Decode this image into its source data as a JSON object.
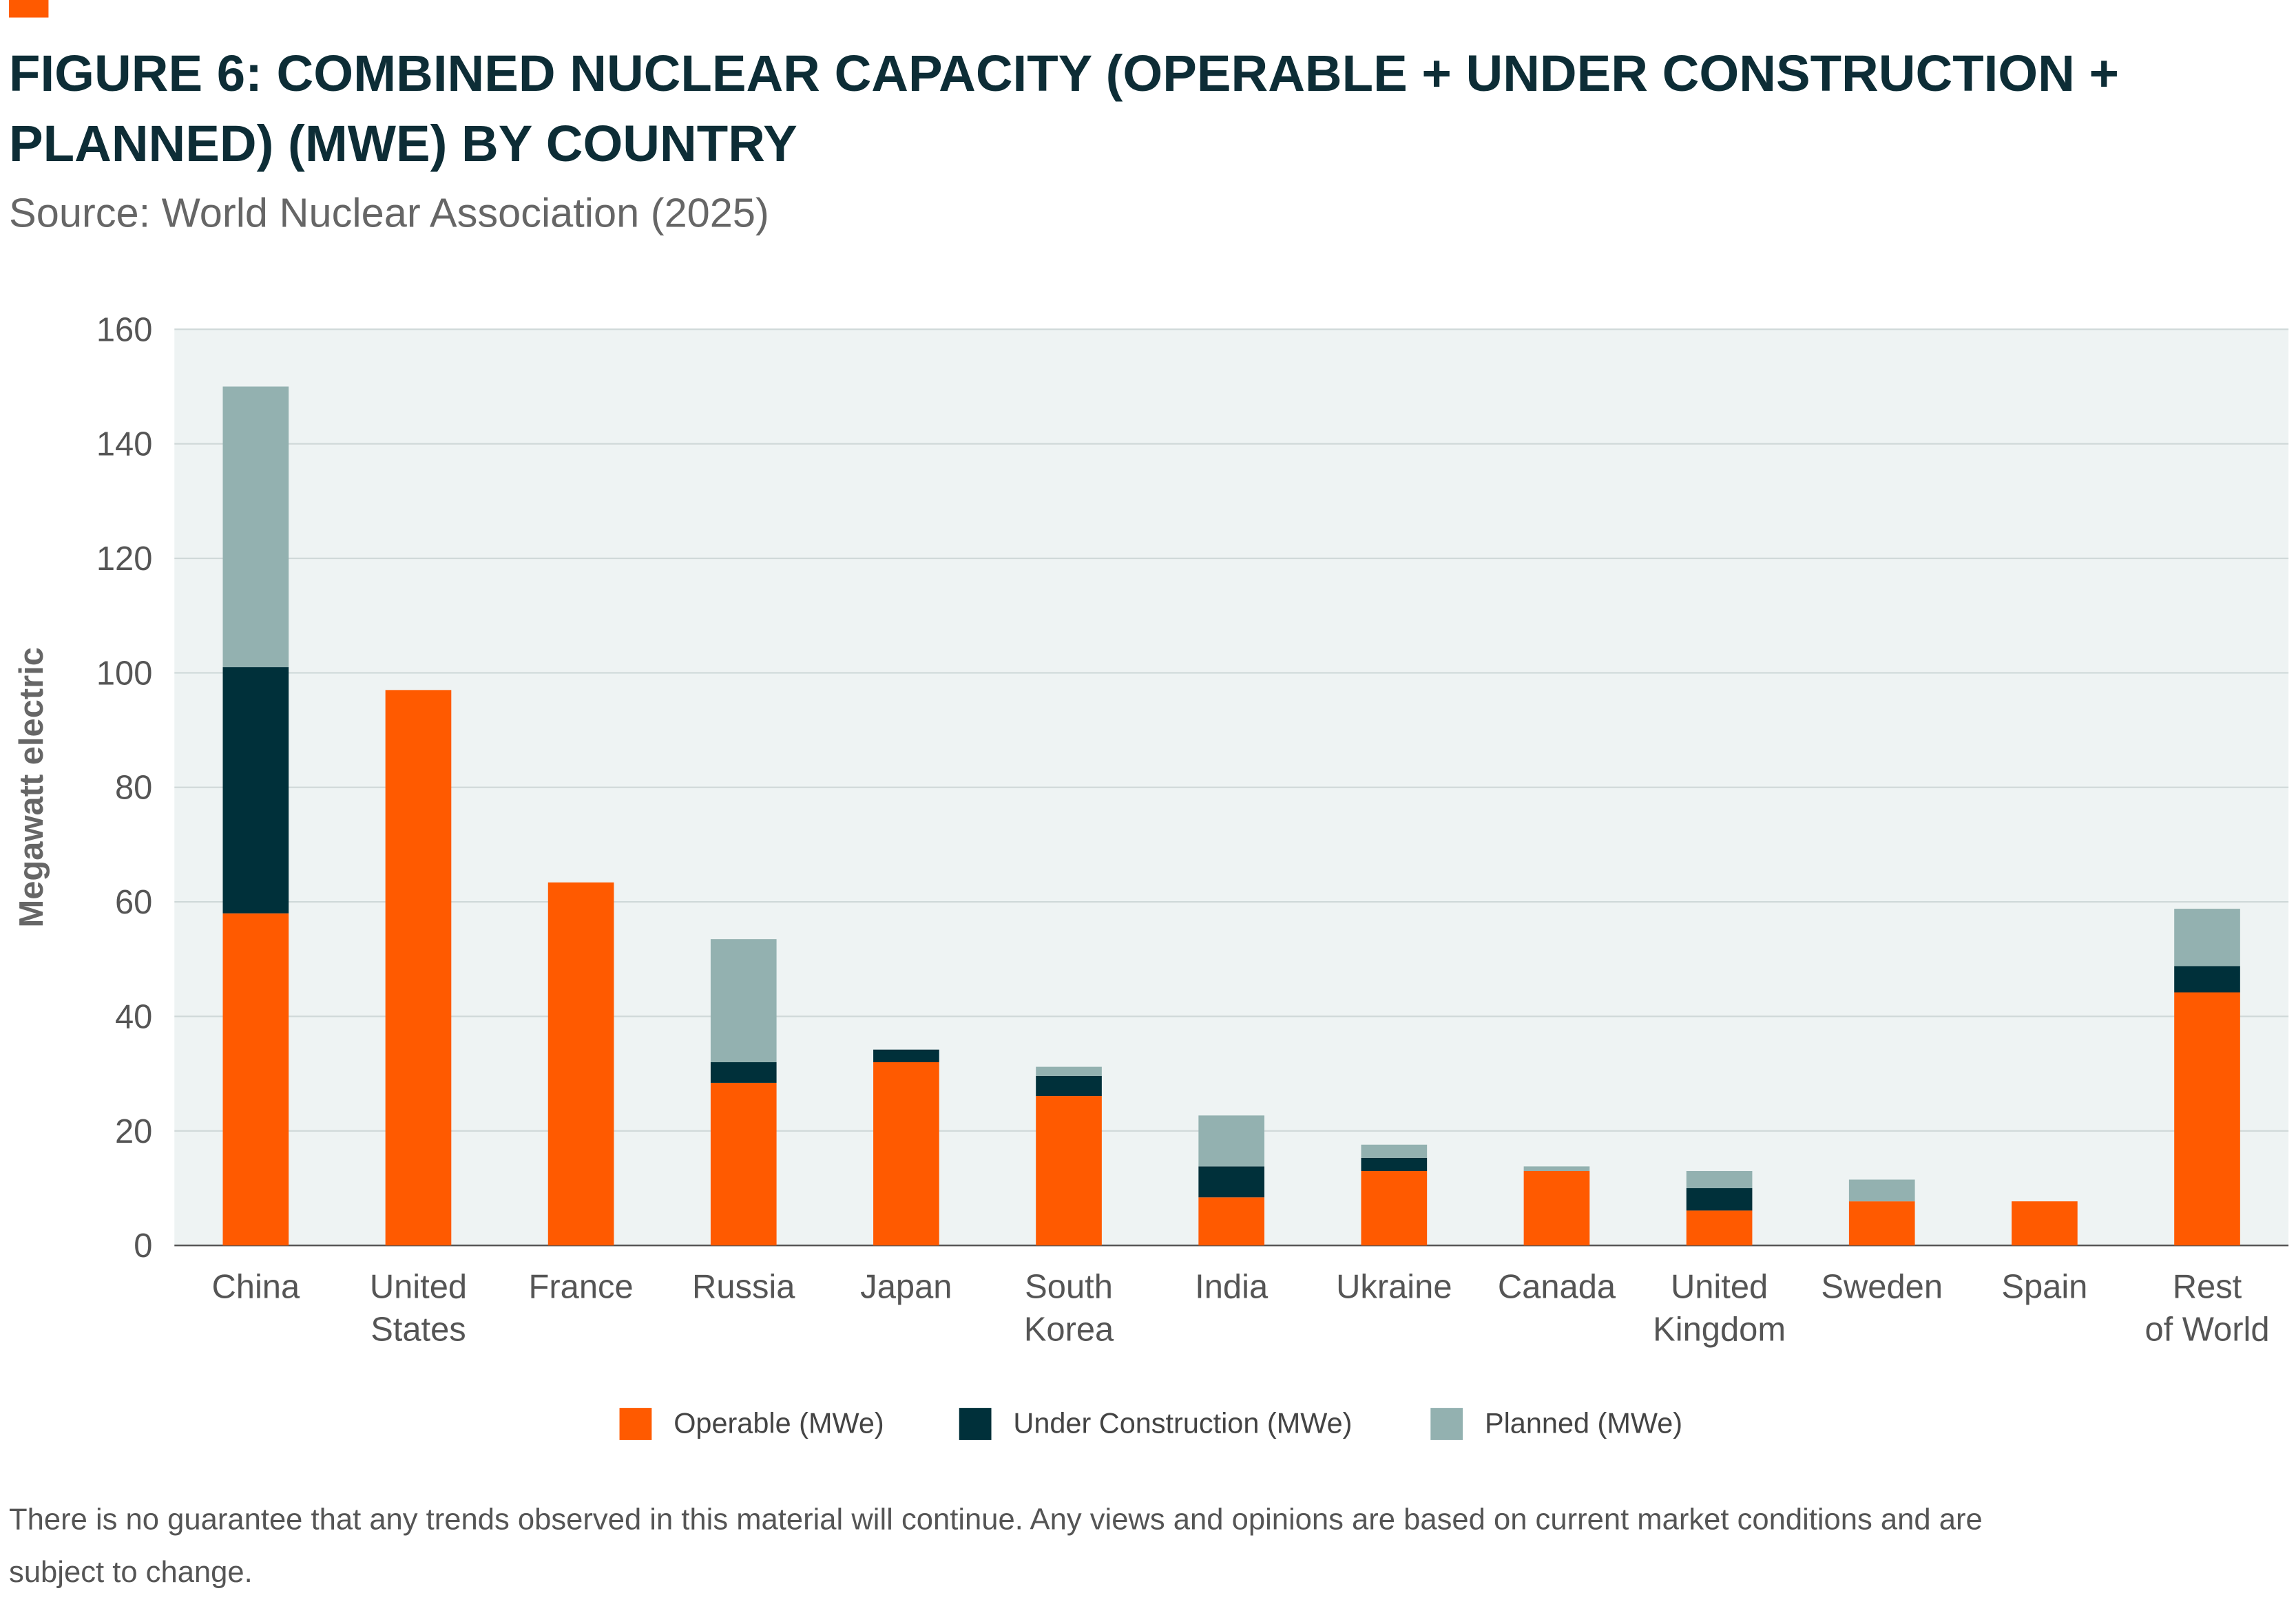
{
  "chart_data": {
    "type": "stacked_bar",
    "title": "FIGURE 6: COMBINED NUCLEAR CAPACITY (OPERABLE + UNDER CONSTRUCTION +\nPLANNED) (MWE) BY COUNTRY",
    "subtitle": "Source: World Nuclear Association (2025)",
    "y_label": "Megawatt electric",
    "categories": [
      "China",
      "United\nStates",
      "France",
      "Russia",
      "Japan",
      "South\nKorea",
      "India",
      "Ukraine",
      "Canada",
      "United\nKingdom",
      "Sweden",
      "Spain",
      "Rest\nof World"
    ],
    "series": [
      {
        "name": "Operable (MWe)",
        "color": "#ff5a00",
        "values": [
          58,
          97,
          63.4,
          28.4,
          32,
          26.1,
          8.4,
          13,
          13,
          6.1,
          7.7,
          7.7,
          44.2
        ]
      },
      {
        "name": "Under Construction (MWe)",
        "color": "#00303a",
        "values": [
          43,
          0,
          0,
          3.6,
          2.2,
          3.5,
          5.4,
          2.3,
          0,
          3.9,
          0,
          0,
          4.6
        ]
      },
      {
        "name": "Planned (MWe)",
        "color": "#93b1b0",
        "values": [
          49,
          0,
          0,
          21.5,
          0,
          1.6,
          8.9,
          2.3,
          0.8,
          3,
          3.8,
          0,
          10
        ]
      }
    ],
    "ylim": [
      0,
      160
    ],
    "yticks": [
      0,
      20,
      40,
      60,
      80,
      100,
      120,
      140,
      160
    ],
    "grid": true,
    "legend": "bottom",
    "footnote": "There is no guarantee that any trends observed in this material will continue. Any views and opinions are based on current market conditions and are\nsubject to change."
  }
}
